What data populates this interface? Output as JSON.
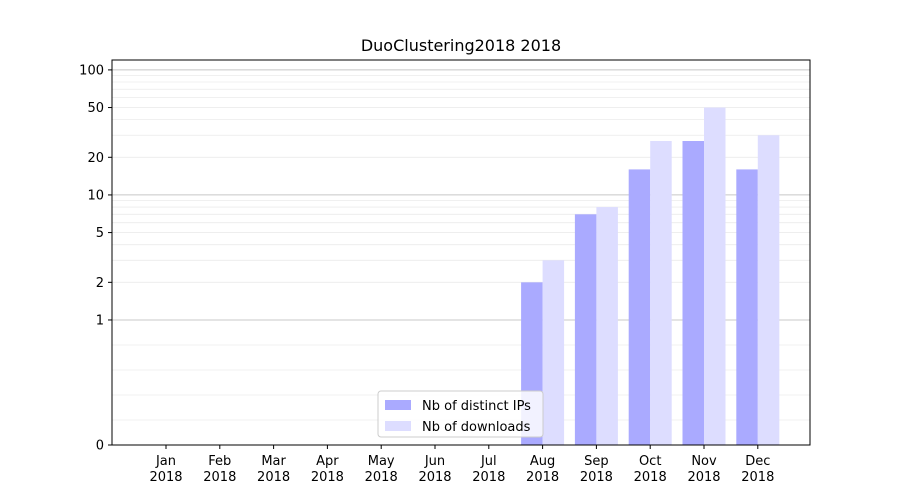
{
  "chart_data": {
    "type": "bar",
    "title": "DuoClustering2018 2018",
    "xlabel": "",
    "ylabel": "",
    "yscale": "symlog",
    "ylim": [
      0,
      120
    ],
    "categories": [
      [
        "Jan",
        "2018"
      ],
      [
        "Feb",
        "2018"
      ],
      [
        "Mar",
        "2018"
      ],
      [
        "Apr",
        "2018"
      ],
      [
        "May",
        "2018"
      ],
      [
        "Jun",
        "2018"
      ],
      [
        "Jul",
        "2018"
      ],
      [
        "Aug",
        "2018"
      ],
      [
        "Sep",
        "2018"
      ],
      [
        "Oct",
        "2018"
      ],
      [
        "Nov",
        "2018"
      ],
      [
        "Dec",
        "2018"
      ]
    ],
    "series": [
      {
        "name": "Nb of distinct IPs",
        "color": "#aaaaff",
        "values": [
          0,
          0,
          0,
          0,
          0,
          0,
          0,
          2,
          7,
          16,
          27,
          16
        ]
      },
      {
        "name": "Nb of downloads",
        "color": "#ddddff",
        "values": [
          0,
          0,
          0,
          0,
          0,
          0,
          0,
          3,
          8,
          27,
          50,
          30
        ]
      }
    ],
    "yticks": [
      0,
      1,
      2,
      5,
      10,
      20,
      50,
      100
    ],
    "grid": true,
    "legend_position": "bottom-center"
  }
}
